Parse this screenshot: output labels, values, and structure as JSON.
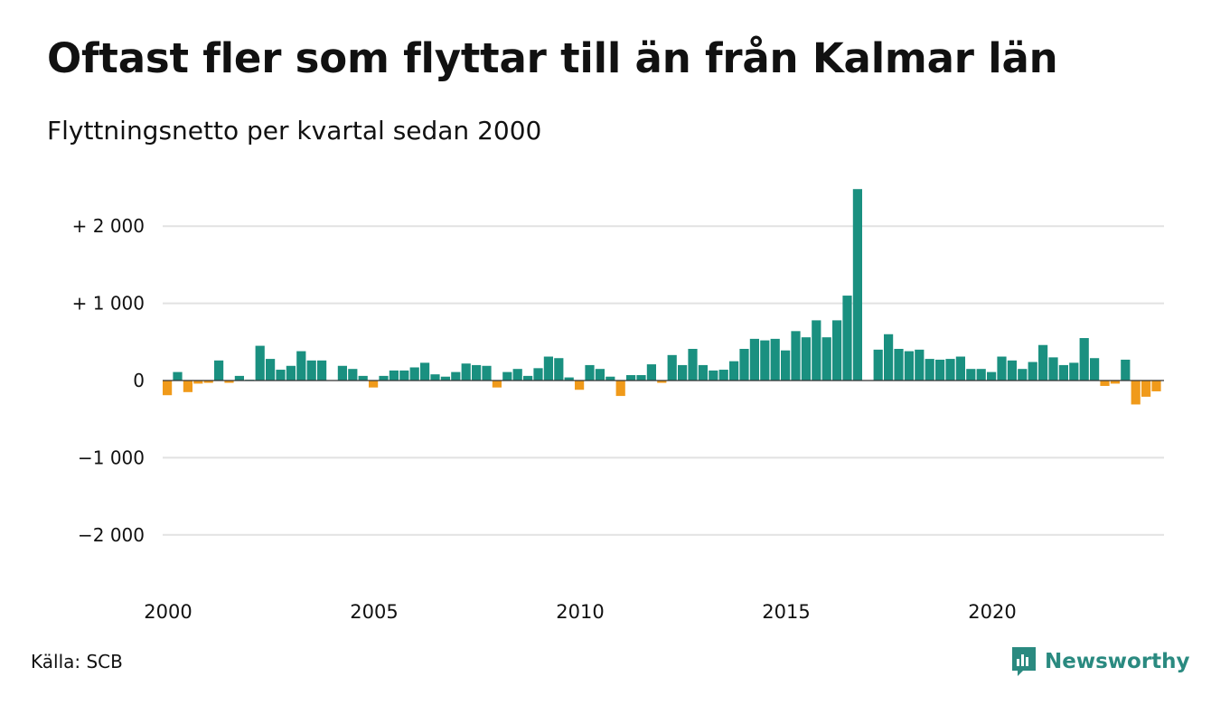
{
  "header": {
    "title": "Oftast fler som flyttar till än från Kalmar län",
    "subtitle": "Flyttningsnetto per kvartal sedan 2000"
  },
  "footer": {
    "source": "Källa: SCB",
    "brand": "Newsworthy"
  },
  "colors": {
    "positive": "#1a9080",
    "negative": "#f09a1a",
    "grid": "#e2e2e2",
    "axis": "#333333",
    "brand": "#2a8a80"
  },
  "chart_data": {
    "type": "bar",
    "title": "Oftast fler som flyttar till än från Kalmar län",
    "subtitle": "Flyttningsnetto per kvartal sedan 2000",
    "ylim": [
      -2500,
      2600
    ],
    "yticks": [
      2000,
      1000,
      0,
      -1000,
      -2000
    ],
    "ytick_labels": [
      "+ 2 000",
      "+ 1 000",
      "0",
      "−1 000",
      "−2 000"
    ],
    "xticks": [
      "2000",
      "2005",
      "2010",
      "2015",
      "2020"
    ],
    "grid": true,
    "x_start": "2000 Q1",
    "frequency": "quarterly",
    "values": [
      -190,
      110,
      -150,
      -40,
      -30,
      260,
      -30,
      60,
      10,
      450,
      280,
      140,
      190,
      380,
      260,
      260,
      0,
      190,
      150,
      60,
      -90,
      60,
      130,
      130,
      170,
      230,
      80,
      50,
      110,
      220,
      200,
      190,
      -90,
      110,
      150,
      60,
      160,
      310,
      290,
      40,
      -120,
      200,
      150,
      50,
      -200,
      70,
      70,
      210,
      -30,
      330,
      200,
      410,
      200,
      130,
      140,
      250,
      410,
      540,
      520,
      540,
      390,
      640,
      560,
      780,
      560,
      780,
      1100,
      2480,
      0,
      400,
      600,
      410,
      380,
      400,
      280,
      270,
      280,
      310,
      150,
      150,
      110,
      310,
      260,
      150,
      240,
      460,
      300,
      200,
      230,
      550,
      290,
      -70,
      -40,
      270,
      -310,
      -210,
      -140
    ]
  }
}
